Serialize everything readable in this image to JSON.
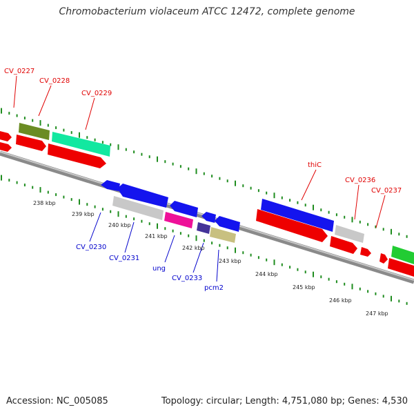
{
  "title": "Chromobacterium violaceum ATCC 12472, complete genome",
  "footer": {
    "accession": "Accession: NC_005085",
    "stats": "Topology: circular; Length: 4,751,080 bp; Genes: 4,530"
  },
  "colors": {
    "backbone": "#8a8a8a",
    "tick": "#1e8c1e",
    "forward_label": "#e00000",
    "reverse_label": "#0000cc",
    "scale_label": "#222222"
  },
  "scale_labels": [
    "238 kbp",
    "239 kbp",
    "240 kbp",
    "241 kbp",
    "242 kbp",
    "243 kbp",
    "244 kbp",
    "245 kbp",
    "246 kbp",
    "247 kbp"
  ],
  "forward_gene_labels": [
    "CV_0227",
    "CV_0228",
    "CV_0229",
    "thiC",
    "CV_0236",
    "CV_0237"
  ],
  "reverse_gene_labels": [
    "CV_0230",
    "CV_0231",
    "ung",
    "CV_0233",
    "pcm2"
  ]
}
